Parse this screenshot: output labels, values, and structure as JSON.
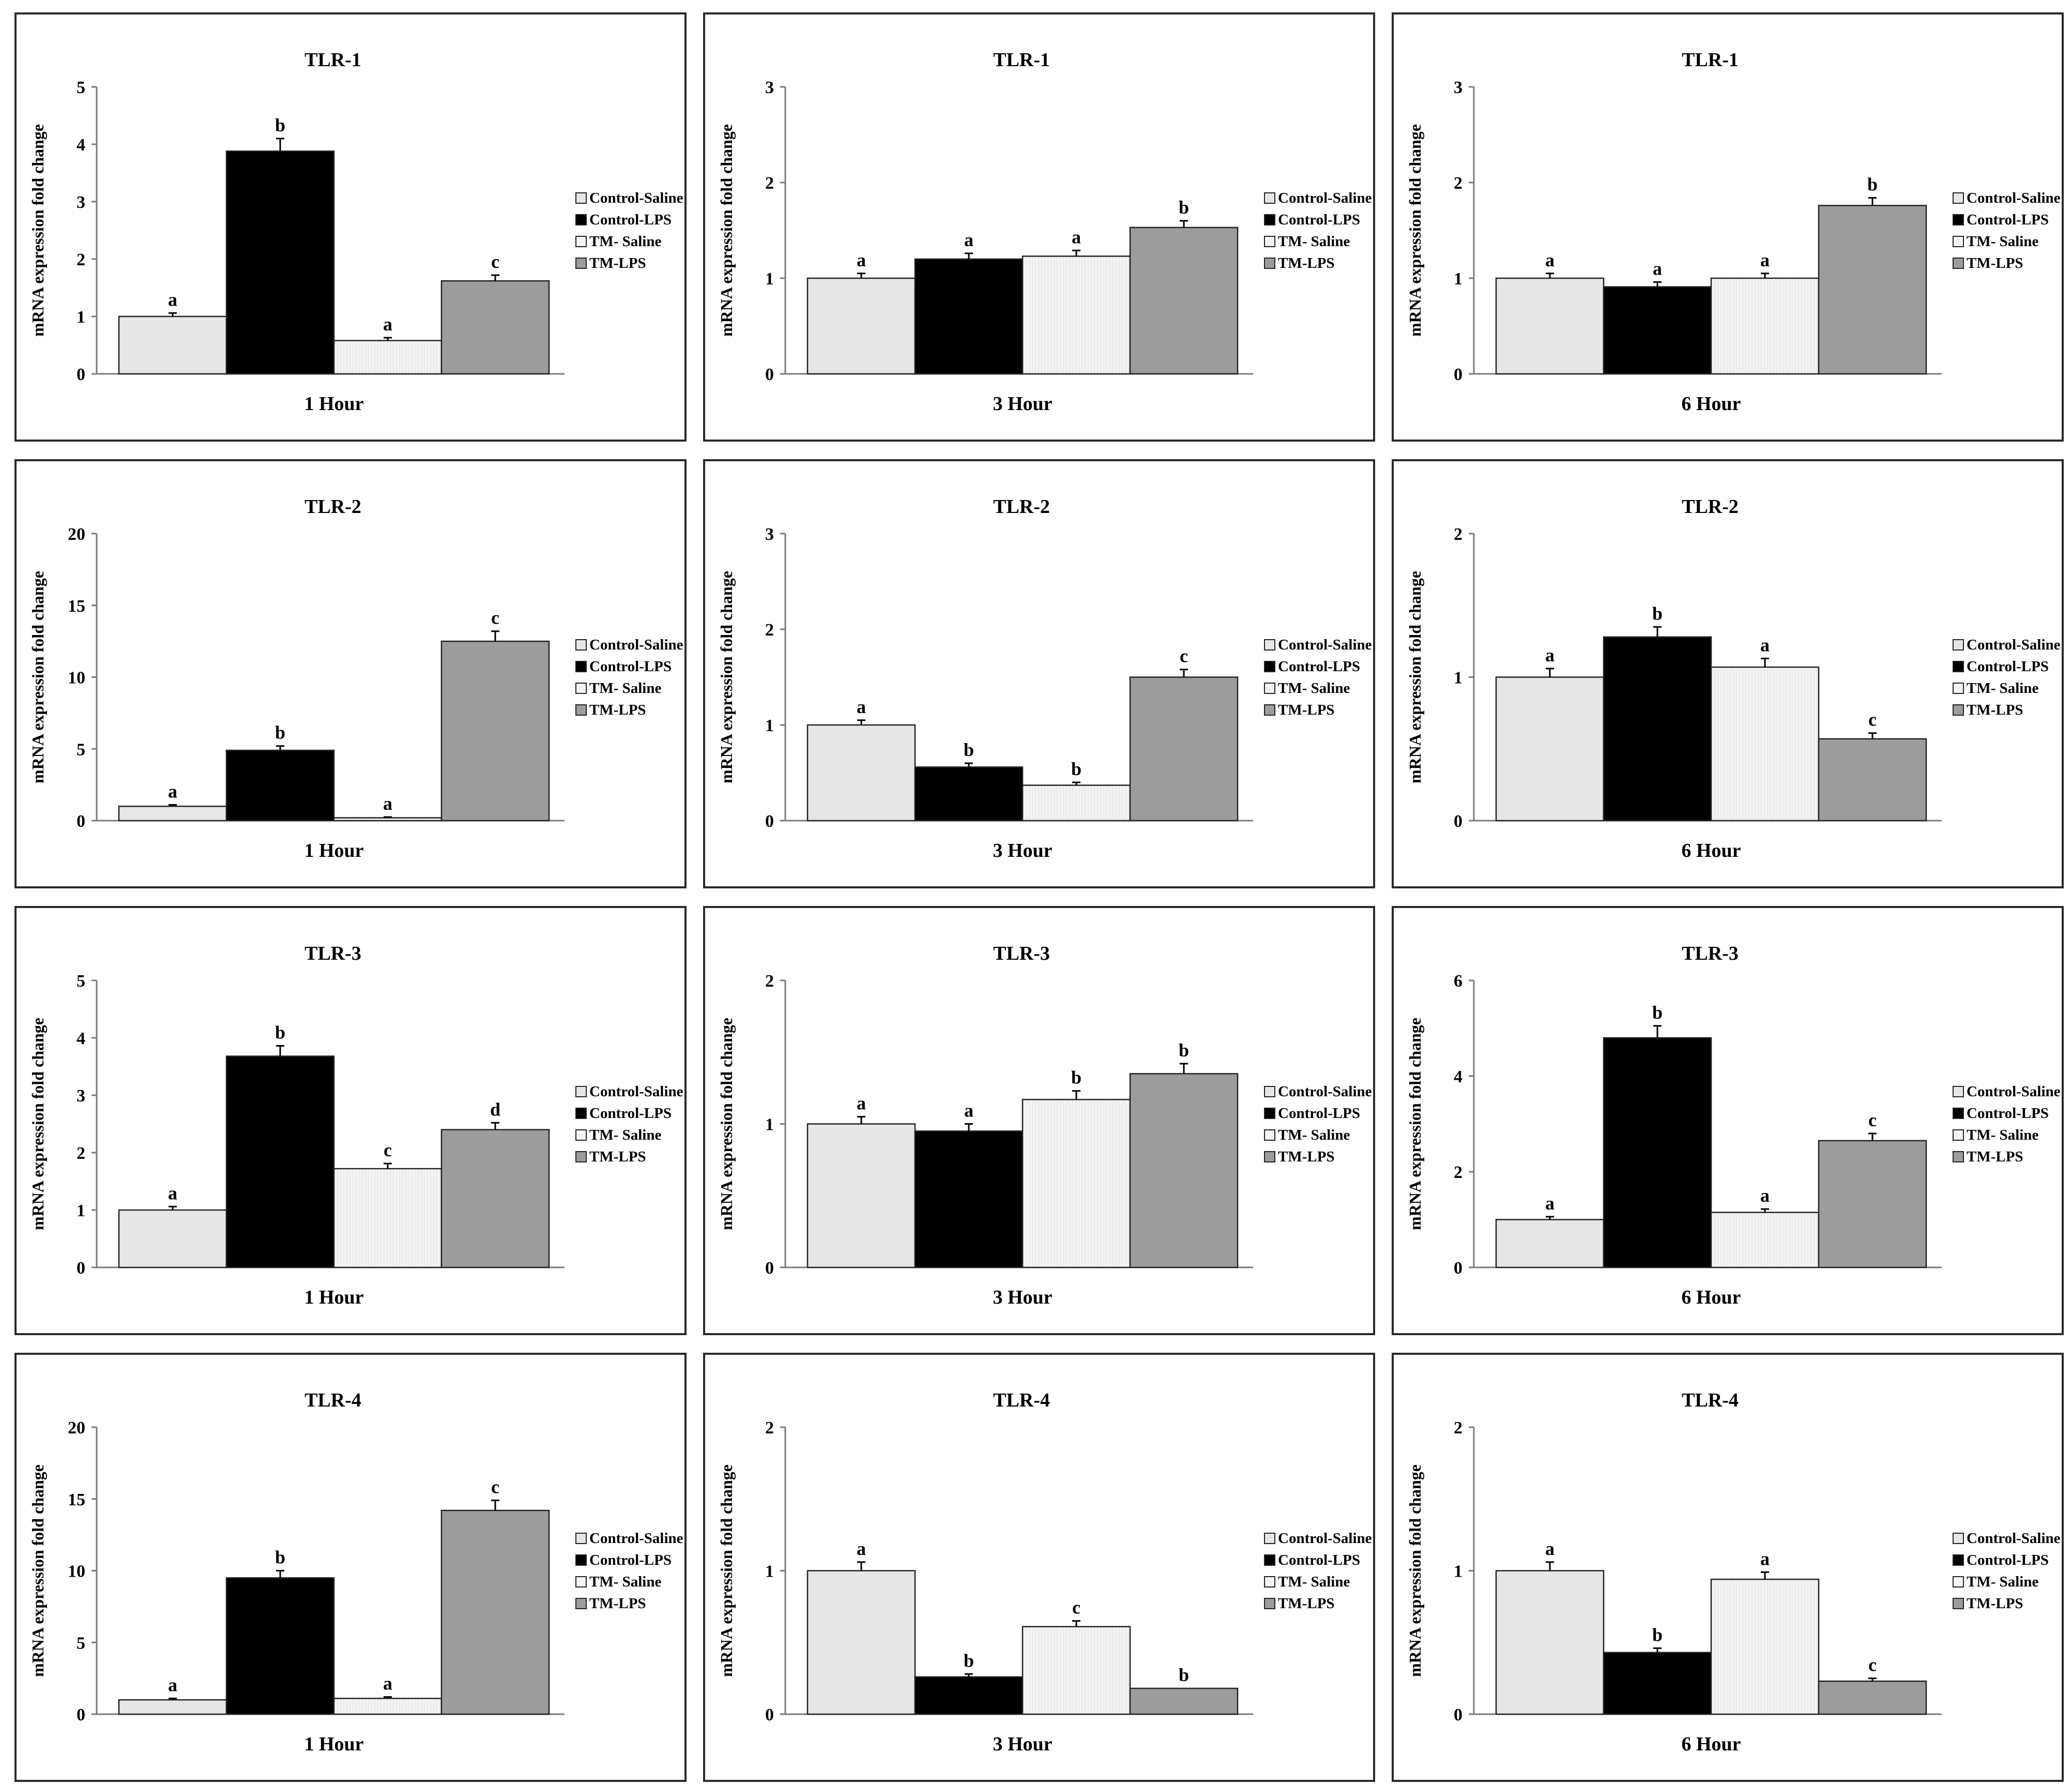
{
  "figure": {
    "ylabel": "mRNA expression fold change",
    "legend": [
      "Control-Saline",
      "Control-LPS",
      "TM- Saline",
      "TM-LPS"
    ],
    "colors": {
      "control_saline": "#e6e6e6",
      "control_lps": "#000000",
      "tm_saline": "#f4f4f4",
      "tm_lps": "#9c9c9c",
      "axis": "#7a7a7a",
      "border": "#2a2a2a"
    }
  },
  "chart_data": [
    {
      "type": "bar",
      "title": "TLR-1",
      "xlabel": "1 Hour",
      "ylabel": "mRNA expression fold change",
      "ylim": [
        0,
        5
      ],
      "yticks": [
        0,
        1,
        2,
        3,
        4,
        5
      ],
      "ytick_labels": [
        "0",
        "1",
        "2",
        "3",
        "4",
        "5"
      ],
      "series": [
        {
          "name": "Control-Saline",
          "value": 1.0,
          "error": 0.06,
          "letter": "a"
        },
        {
          "name": "Control-LPS",
          "value": 3.88,
          "error": 0.22,
          "letter": "b"
        },
        {
          "name": "TM- Saline",
          "value": 0.58,
          "error": 0.05,
          "letter": "a"
        },
        {
          "name": "TM-LPS",
          "value": 1.62,
          "error": 0.1,
          "letter": "c"
        }
      ]
    },
    {
      "type": "bar",
      "title": "TLR-1",
      "xlabel": "3 Hour",
      "ylabel": "mRNA expression fold change",
      "ylim": [
        0,
        3
      ],
      "yticks": [
        0,
        1,
        2,
        3
      ],
      "ytick_labels": [
        "0",
        "1",
        "2",
        "3"
      ],
      "series": [
        {
          "name": "Control-Saline",
          "value": 1.0,
          "error": 0.05,
          "letter": "a"
        },
        {
          "name": "Control-LPS",
          "value": 1.2,
          "error": 0.06,
          "letter": "a"
        },
        {
          "name": "TM- Saline",
          "value": 1.23,
          "error": 0.06,
          "letter": "a"
        },
        {
          "name": "TM-LPS",
          "value": 1.53,
          "error": 0.07,
          "letter": "b"
        }
      ]
    },
    {
      "type": "bar",
      "title": "TLR-1",
      "xlabel": "6 Hour",
      "ylabel": "mRNA expression fold change",
      "ylim": [
        0,
        3
      ],
      "yticks": [
        0,
        1,
        2,
        3
      ],
      "ytick_labels": [
        "0",
        "1",
        "2",
        "3"
      ],
      "series": [
        {
          "name": "Control-Saline",
          "value": 1.0,
          "error": 0.05,
          "letter": "a"
        },
        {
          "name": "Control-LPS",
          "value": 0.91,
          "error": 0.05,
          "letter": "a"
        },
        {
          "name": "TM- Saline",
          "value": 1.0,
          "error": 0.05,
          "letter": "a"
        },
        {
          "name": "TM-LPS",
          "value": 1.76,
          "error": 0.08,
          "letter": "b"
        }
      ]
    },
    {
      "type": "bar",
      "title": "TLR-2",
      "xlabel": "1 Hour",
      "ylabel": "mRNA expression fold change",
      "ylim": [
        0,
        20
      ],
      "yticks": [
        0,
        5,
        10,
        15,
        20
      ],
      "ytick_labels": [
        "0",
        "5",
        "10",
        "15",
        "20"
      ],
      "series": [
        {
          "name": "Control-Saline",
          "value": 1.0,
          "error": 0.1,
          "letter": "a"
        },
        {
          "name": "Control-LPS",
          "value": 4.9,
          "error": 0.3,
          "letter": "b"
        },
        {
          "name": "TM- Saline",
          "value": 0.2,
          "error": 0.05,
          "letter": "a"
        },
        {
          "name": "TM-LPS",
          "value": 12.5,
          "error": 0.7,
          "letter": "c"
        }
      ]
    },
    {
      "type": "bar",
      "title": "TLR-2",
      "xlabel": "3 Hour",
      "ylabel": "mRNA expression fold change",
      "ylim": [
        0,
        3
      ],
      "yticks": [
        0,
        1,
        2,
        3
      ],
      "ytick_labels": [
        "0",
        "1",
        "2",
        "3"
      ],
      "series": [
        {
          "name": "Control-Saline",
          "value": 1.0,
          "error": 0.05,
          "letter": "a"
        },
        {
          "name": "Control-LPS",
          "value": 0.56,
          "error": 0.04,
          "letter": "b"
        },
        {
          "name": "TM- Saline",
          "value": 0.37,
          "error": 0.03,
          "letter": "b"
        },
        {
          "name": "TM-LPS",
          "value": 1.5,
          "error": 0.08,
          "letter": "c"
        }
      ]
    },
    {
      "type": "bar",
      "title": "TLR-2",
      "xlabel": "6 Hour",
      "ylabel": "mRNA expression fold change",
      "ylim": [
        0,
        2
      ],
      "yticks": [
        0,
        1,
        2
      ],
      "ytick_labels": [
        "0",
        "1",
        "2"
      ],
      "series": [
        {
          "name": "Control-Saline",
          "value": 1.0,
          "error": 0.06,
          "letter": "a"
        },
        {
          "name": "Control-LPS",
          "value": 1.28,
          "error": 0.07,
          "letter": "b"
        },
        {
          "name": "TM- Saline",
          "value": 1.07,
          "error": 0.06,
          "letter": "a"
        },
        {
          "name": "TM-LPS",
          "value": 0.57,
          "error": 0.04,
          "letter": "c"
        }
      ]
    },
    {
      "type": "bar",
      "title": "TLR-3",
      "xlabel": "1 Hour",
      "ylabel": "mRNA expression fold change",
      "ylim": [
        0,
        5
      ],
      "yticks": [
        0,
        1,
        2,
        3,
        4,
        5
      ],
      "ytick_labels": [
        "0",
        "1",
        "2",
        "3",
        "4",
        "5"
      ],
      "series": [
        {
          "name": "Control-Saline",
          "value": 1.0,
          "error": 0.06,
          "letter": "a"
        },
        {
          "name": "Control-LPS",
          "value": 3.68,
          "error": 0.18,
          "letter": "b"
        },
        {
          "name": "TM- Saline",
          "value": 1.72,
          "error": 0.09,
          "letter": "c"
        },
        {
          "name": "TM-LPS",
          "value": 2.4,
          "error": 0.12,
          "letter": "d"
        }
      ]
    },
    {
      "type": "bar",
      "title": "TLR-3",
      "xlabel": "3 Hour",
      "ylabel": "mRNA expression fold change",
      "ylim": [
        0,
        2
      ],
      "yticks": [
        0,
        1,
        2
      ],
      "ytick_labels": [
        "0",
        "1",
        "2"
      ],
      "series": [
        {
          "name": "Control-Saline",
          "value": 1.0,
          "error": 0.05,
          "letter": "a"
        },
        {
          "name": "Control-LPS",
          "value": 0.95,
          "error": 0.05,
          "letter": "a"
        },
        {
          "name": "TM- Saline",
          "value": 1.17,
          "error": 0.06,
          "letter": "b"
        },
        {
          "name": "TM-LPS",
          "value": 1.35,
          "error": 0.07,
          "letter": "b"
        }
      ]
    },
    {
      "type": "bar",
      "title": "TLR-3",
      "xlabel": "6 Hour",
      "ylabel": "mRNA expression fold change",
      "ylim": [
        0,
        6
      ],
      "yticks": [
        0,
        2,
        4,
        6
      ],
      "ytick_labels": [
        "0",
        "2",
        "4",
        "6"
      ],
      "series": [
        {
          "name": "Control-Saline",
          "value": 1.0,
          "error": 0.06,
          "letter": "a"
        },
        {
          "name": "Control-LPS",
          "value": 4.8,
          "error": 0.25,
          "letter": "b"
        },
        {
          "name": "TM- Saline",
          "value": 1.15,
          "error": 0.07,
          "letter": "a"
        },
        {
          "name": "TM-LPS",
          "value": 2.65,
          "error": 0.15,
          "letter": "c"
        }
      ]
    },
    {
      "type": "bar",
      "title": "TLR-4",
      "xlabel": "1 Hour",
      "ylabel": "mRNA expression fold change",
      "ylim": [
        0,
        20
      ],
      "yticks": [
        0,
        5,
        10,
        15,
        20
      ],
      "ytick_labels": [
        "0",
        "5",
        "10",
        "15",
        "20"
      ],
      "series": [
        {
          "name": "Control-Saline",
          "value": 1.0,
          "error": 0.1,
          "letter": "a"
        },
        {
          "name": "Control-LPS",
          "value": 9.5,
          "error": 0.5,
          "letter": "b"
        },
        {
          "name": "TM- Saline",
          "value": 1.1,
          "error": 0.1,
          "letter": "a"
        },
        {
          "name": "TM-LPS",
          "value": 14.2,
          "error": 0.7,
          "letter": "c"
        }
      ]
    },
    {
      "type": "bar",
      "title": "TLR-4",
      "xlabel": "3 Hour",
      "ylabel": "mRNA expression fold change",
      "ylim": [
        0,
        2
      ],
      "yticks": [
        0,
        1,
        2
      ],
      "ytick_labels": [
        "0",
        "1",
        "2"
      ],
      "series": [
        {
          "name": "Control-Saline",
          "value": 1.0,
          "error": 0.06,
          "letter": "a"
        },
        {
          "name": "Control-LPS",
          "value": 0.26,
          "error": 0.02,
          "letter": "b"
        },
        {
          "name": "TM- Saline",
          "value": 0.61,
          "error": 0.04,
          "letter": "c"
        },
        {
          "name": "TM-LPS",
          "value": 0.18,
          "error": 0.0,
          "letter": "b"
        }
      ]
    },
    {
      "type": "bar",
      "title": "TLR-4",
      "xlabel": "6 Hour",
      "ylabel": "mRNA expression fold change",
      "ylim": [
        0,
        2
      ],
      "yticks": [
        0,
        1,
        2
      ],
      "ytick_labels": [
        "0",
        "1",
        "2"
      ],
      "series": [
        {
          "name": "Control-Saline",
          "value": 1.0,
          "error": 0.06,
          "letter": "a"
        },
        {
          "name": "Control-LPS",
          "value": 0.43,
          "error": 0.03,
          "letter": "b"
        },
        {
          "name": "TM- Saline",
          "value": 0.94,
          "error": 0.05,
          "letter": "a"
        },
        {
          "name": "TM-LPS",
          "value": 0.23,
          "error": 0.02,
          "letter": "c"
        }
      ]
    }
  ]
}
